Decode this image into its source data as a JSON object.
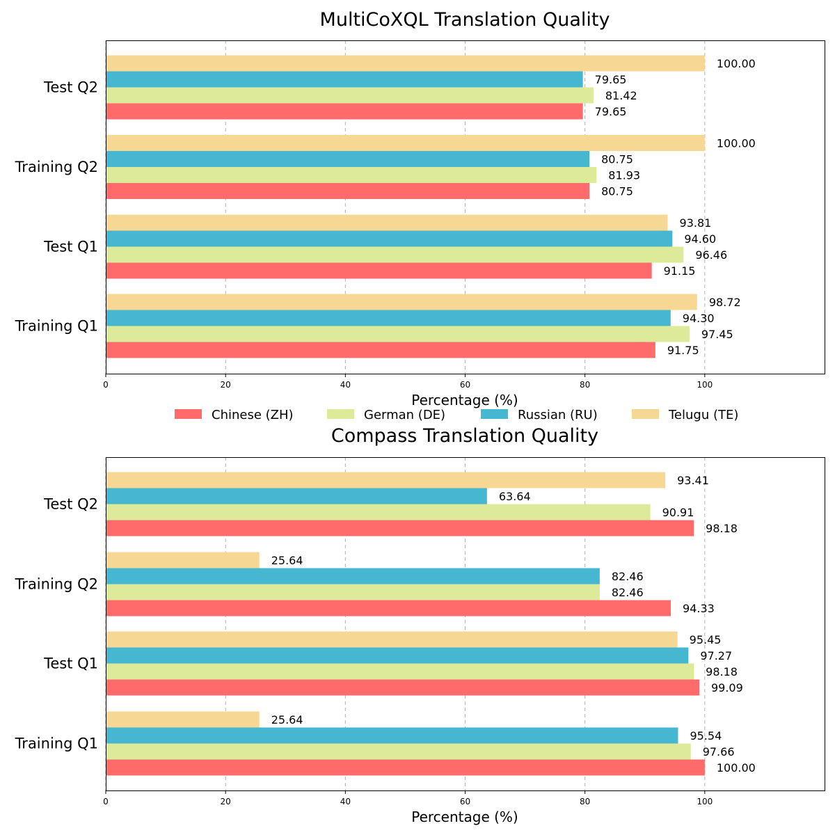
{
  "series_colors": {
    "Chinese (ZH)": "#ff6b6b",
    "German (DE)": "#dcea9a",
    "Russian (RU)": "#45b7d1",
    "Telugu (TE)": "#f7d794"
  },
  "legend": {
    "entries": [
      "Chinese (ZH)",
      "German (DE)",
      "Russian (RU)",
      "Telugu (TE)"
    ]
  },
  "chart_data": [
    {
      "type": "bar",
      "orientation": "horizontal",
      "title": "MultiCoXQL Translation Quality",
      "xlabel": "Percentage (%)",
      "ylabel": "",
      "xlim": [
        0,
        120
      ],
      "xticks": [
        0,
        20,
        40,
        60,
        80,
        100
      ],
      "grid": "x, dashed",
      "categories": [
        "Training Q1",
        "Test Q1",
        "Training Q2",
        "Test Q2"
      ],
      "series": [
        {
          "name": "Chinese (ZH)",
          "values": [
            91.75,
            91.15,
            80.75,
            79.65
          ]
        },
        {
          "name": "German (DE)",
          "values": [
            97.45,
            96.46,
            81.93,
            81.42
          ]
        },
        {
          "name": "Russian (RU)",
          "values": [
            94.3,
            94.6,
            80.75,
            79.65
          ]
        },
        {
          "name": "Telugu (TE)",
          "values": [
            98.72,
            93.81,
            100.0,
            100.0
          ]
        }
      ]
    },
    {
      "type": "bar",
      "orientation": "horizontal",
      "title": "Compass Translation Quality",
      "xlabel": "Percentage (%)",
      "ylabel": "",
      "xlim": [
        0,
        120
      ],
      "xticks": [
        0,
        20,
        40,
        60,
        80,
        100
      ],
      "grid": "x, dashed",
      "categories": [
        "Training Q1",
        "Test Q1",
        "Training Q2",
        "Test Q2"
      ],
      "series": [
        {
          "name": "Chinese (ZH)",
          "values": [
            100.0,
            99.09,
            94.33,
            98.18
          ]
        },
        {
          "name": "German (DE)",
          "values": [
            97.66,
            98.18,
            82.46,
            90.91
          ]
        },
        {
          "name": "Russian (RU)",
          "values": [
            95.54,
            97.27,
            82.46,
            63.64
          ]
        },
        {
          "name": "Telugu (TE)",
          "values": [
            25.64,
            95.45,
            25.64,
            93.41
          ]
        }
      ]
    }
  ]
}
